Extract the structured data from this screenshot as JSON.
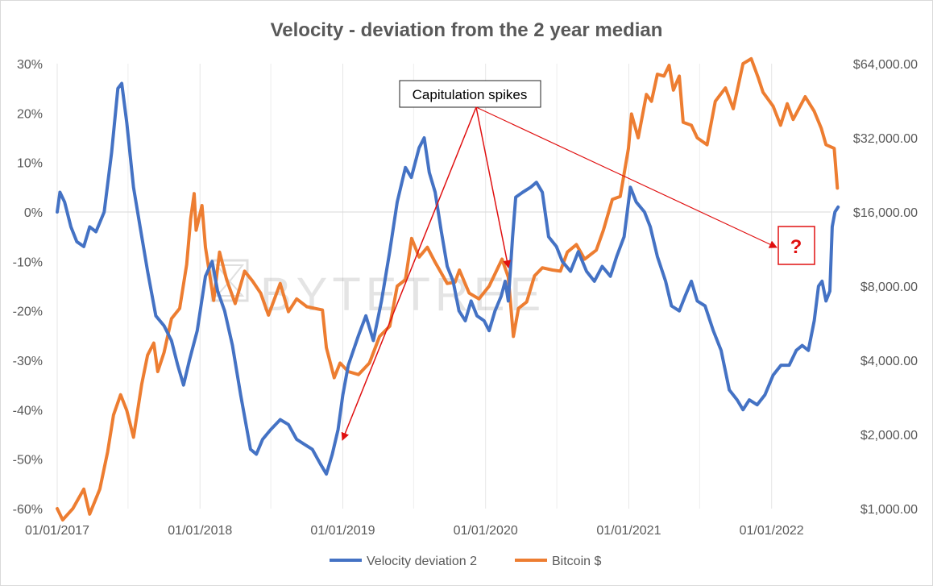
{
  "chart_data": {
    "type": "line",
    "title": "Velocity - deviation from the 2 year median",
    "x_axis": {
      "type": "date",
      "range": [
        "2017-01-01",
        "2022-06-01"
      ],
      "tick_labels": [
        "01/01/2017",
        "01/01/2018",
        "01/01/2019",
        "01/01/2020",
        "01/01/2021",
        "01/01/2022"
      ]
    },
    "y_left": {
      "range": [
        -60,
        30
      ],
      "unit": "%",
      "tick_labels": [
        "30%",
        "20%",
        "10%",
        "0%",
        "-10%",
        "-20%",
        "-30%",
        "-40%",
        "-50%",
        "-60%"
      ]
    },
    "y_right": {
      "scale": "log2",
      "range": [
        1000,
        64000
      ],
      "tick_labels": [
        "$64,000.00",
        "$32,000.00",
        "$16,000.00",
        "$8,000.00",
        "$4,000.00",
        "$2,000.00",
        "$1,000.00"
      ]
    },
    "grid": "vertical",
    "legend_position": "bottom",
    "series": [
      {
        "name": "Velocity deviation 2",
        "axis": "left",
        "color": "#4472c4",
        "points": [
          [
            "2017-01-01",
            0
          ],
          [
            "2017-01-08",
            4
          ],
          [
            "2017-01-20",
            2
          ],
          [
            "2017-02-05",
            -3
          ],
          [
            "2017-02-20",
            -6
          ],
          [
            "2017-03-10",
            -7
          ],
          [
            "2017-03-25",
            -3
          ],
          [
            "2017-04-10",
            -4
          ],
          [
            "2017-05-01",
            0
          ],
          [
            "2017-05-20",
            12
          ],
          [
            "2017-06-05",
            25
          ],
          [
            "2017-06-15",
            26
          ],
          [
            "2017-06-28",
            18
          ],
          [
            "2017-07-15",
            5
          ],
          [
            "2017-08-01",
            -3
          ],
          [
            "2017-08-20",
            -12
          ],
          [
            "2017-09-10",
            -21
          ],
          [
            "2017-10-01",
            -23
          ],
          [
            "2017-10-20",
            -26
          ],
          [
            "2017-11-05",
            -31
          ],
          [
            "2017-11-20",
            -35
          ],
          [
            "2017-12-05",
            -30
          ],
          [
            "2017-12-25",
            -24
          ],
          [
            "2018-01-15",
            -13
          ],
          [
            "2018-02-01",
            -10
          ],
          [
            "2018-02-15",
            -16
          ],
          [
            "2018-03-05",
            -20
          ],
          [
            "2018-03-25",
            -27
          ],
          [
            "2018-04-15",
            -37
          ],
          [
            "2018-05-10",
            -48
          ],
          [
            "2018-05-25",
            -49
          ],
          [
            "2018-06-10",
            -46
          ],
          [
            "2018-07-01",
            -44
          ],
          [
            "2018-07-25",
            -42
          ],
          [
            "2018-08-15",
            -43
          ],
          [
            "2018-09-05",
            -46
          ],
          [
            "2018-09-25",
            -47
          ],
          [
            "2018-10-15",
            -48
          ],
          [
            "2018-11-05",
            -51
          ],
          [
            "2018-11-20",
            -53
          ],
          [
            "2018-12-05",
            -49
          ],
          [
            "2018-12-20",
            -44
          ],
          [
            "2019-01-01",
            -37
          ],
          [
            "2019-01-15",
            -31
          ],
          [
            "2019-02-10",
            -25
          ],
          [
            "2019-03-01",
            -21
          ],
          [
            "2019-03-20",
            -26
          ],
          [
            "2019-04-10",
            -18
          ],
          [
            "2019-05-01",
            -8
          ],
          [
            "2019-05-20",
            2
          ],
          [
            "2019-06-10",
            9
          ],
          [
            "2019-06-25",
            7
          ],
          [
            "2019-07-15",
            13
          ],
          [
            "2019-07-28",
            15
          ],
          [
            "2019-08-10",
            8
          ],
          [
            "2019-08-25",
            4
          ],
          [
            "2019-09-10",
            -4
          ],
          [
            "2019-09-25",
            -11
          ],
          [
            "2019-10-10",
            -14
          ],
          [
            "2019-10-25",
            -20
          ],
          [
            "2019-11-10",
            -22
          ],
          [
            "2019-11-25",
            -18
          ],
          [
            "2019-12-10",
            -21
          ],
          [
            "2019-12-28",
            -22
          ],
          [
            "2020-01-10",
            -24
          ],
          [
            "2020-01-25",
            -20
          ],
          [
            "2020-02-10",
            -17
          ],
          [
            "2020-02-20",
            -14
          ],
          [
            "2020-02-28",
            -18
          ],
          [
            "2020-03-10",
            -5
          ],
          [
            "2020-03-18",
            3
          ],
          [
            "2020-04-05",
            4
          ],
          [
            "2020-04-25",
            5
          ],
          [
            "2020-05-10",
            6
          ],
          [
            "2020-05-25",
            4
          ],
          [
            "2020-06-10",
            -5
          ],
          [
            "2020-06-30",
            -7
          ],
          [
            "2020-07-15",
            -10
          ],
          [
            "2020-08-05",
            -12
          ],
          [
            "2020-08-25",
            -8
          ],
          [
            "2020-09-15",
            -12
          ],
          [
            "2020-10-05",
            -14
          ],
          [
            "2020-10-25",
            -11
          ],
          [
            "2020-11-15",
            -13
          ],
          [
            "2020-12-01",
            -9
          ],
          [
            "2020-12-20",
            -5
          ],
          [
            "2021-01-05",
            5
          ],
          [
            "2021-01-20",
            2
          ],
          [
            "2021-02-10",
            0
          ],
          [
            "2021-02-25",
            -3
          ],
          [
            "2021-03-15",
            -9
          ],
          [
            "2021-04-05",
            -14
          ],
          [
            "2021-04-20",
            -19
          ],
          [
            "2021-05-10",
            -20
          ],
          [
            "2021-05-25",
            -17
          ],
          [
            "2021-06-10",
            -14
          ],
          [
            "2021-06-25",
            -18
          ],
          [
            "2021-07-15",
            -19
          ],
          [
            "2021-08-05",
            -24
          ],
          [
            "2021-08-25",
            -28
          ],
          [
            "2021-09-15",
            -36
          ],
          [
            "2021-10-05",
            -38
          ],
          [
            "2021-10-20",
            -40
          ],
          [
            "2021-11-05",
            -38
          ],
          [
            "2021-11-25",
            -39
          ],
          [
            "2021-12-15",
            -37
          ],
          [
            "2022-01-05",
            -33
          ],
          [
            "2022-01-25",
            -31
          ],
          [
            "2022-02-15",
            -31
          ],
          [
            "2022-03-05",
            -28
          ],
          [
            "2022-03-20",
            -27
          ],
          [
            "2022-04-05",
            -28
          ],
          [
            "2022-04-20",
            -22
          ],
          [
            "2022-05-01",
            -15
          ],
          [
            "2022-05-10",
            -14
          ],
          [
            "2022-05-20",
            -18
          ],
          [
            "2022-05-30",
            -16
          ],
          [
            "2022-06-05",
            -3
          ],
          [
            "2022-06-12",
            0
          ],
          [
            "2022-06-20",
            1
          ]
        ]
      },
      {
        "name": "Bitcoin $",
        "axis": "right",
        "color": "#ed7d31",
        "points": [
          [
            "2017-01-01",
            1000
          ],
          [
            "2017-01-15",
            900
          ],
          [
            "2017-02-10",
            1000
          ],
          [
            "2017-03-10",
            1200
          ],
          [
            "2017-03-25",
            950
          ],
          [
            "2017-04-20",
            1200
          ],
          [
            "2017-05-10",
            1700
          ],
          [
            "2017-05-25",
            2400
          ],
          [
            "2017-06-12",
            2900
          ],
          [
            "2017-06-28",
            2500
          ],
          [
            "2017-07-15",
            1950
          ],
          [
            "2017-08-05",
            3200
          ],
          [
            "2017-08-20",
            4200
          ],
          [
            "2017-09-05",
            4700
          ],
          [
            "2017-09-15",
            3600
          ],
          [
            "2017-10-01",
            4300
          ],
          [
            "2017-10-20",
            5900
          ],
          [
            "2017-11-10",
            6500
          ],
          [
            "2017-11-28",
            9800
          ],
          [
            "2017-12-08",
            15000
          ],
          [
            "2017-12-17",
            19000
          ],
          [
            "2017-12-22",
            13500
          ],
          [
            "2018-01-06",
            17000
          ],
          [
            "2018-01-15",
            11500
          ],
          [
            "2018-02-05",
            7000
          ],
          [
            "2018-02-20",
            11000
          ],
          [
            "2018-03-10",
            8500
          ],
          [
            "2018-04-01",
            6800
          ],
          [
            "2018-04-25",
            9200
          ],
          [
            "2018-05-15",
            8400
          ],
          [
            "2018-06-05",
            7500
          ],
          [
            "2018-06-25",
            6100
          ],
          [
            "2018-07-25",
            8200
          ],
          [
            "2018-08-15",
            6300
          ],
          [
            "2018-09-05",
            7100
          ],
          [
            "2018-10-01",
            6600
          ],
          [
            "2018-11-10",
            6400
          ],
          [
            "2018-11-20",
            4500
          ],
          [
            "2018-12-10",
            3400
          ],
          [
            "2018-12-25",
            3900
          ],
          [
            "2019-01-15",
            3600
          ],
          [
            "2019-02-10",
            3500
          ],
          [
            "2019-03-10",
            3900
          ],
          [
            "2019-04-05",
            5000
          ],
          [
            "2019-05-01",
            5500
          ],
          [
            "2019-05-20",
            8000
          ],
          [
            "2019-06-10",
            8500
          ],
          [
            "2019-06-26",
            12500
          ],
          [
            "2019-07-15",
            10500
          ],
          [
            "2019-08-05",
            11500
          ],
          [
            "2019-08-25",
            10000
          ],
          [
            "2019-09-25",
            8200
          ],
          [
            "2019-10-15",
            8300
          ],
          [
            "2019-10-26",
            9300
          ],
          [
            "2019-11-20",
            7500
          ],
          [
            "2019-12-15",
            7100
          ],
          [
            "2020-01-10",
            8000
          ],
          [
            "2020-02-12",
            10300
          ],
          [
            "2020-02-28",
            8700
          ],
          [
            "2020-03-12",
            5000
          ],
          [
            "2020-03-25",
            6500
          ],
          [
            "2020-04-15",
            6900
          ],
          [
            "2020-05-05",
            8800
          ],
          [
            "2020-05-25",
            9500
          ],
          [
            "2020-06-20",
            9300
          ],
          [
            "2020-07-10",
            9200
          ],
          [
            "2020-07-28",
            11000
          ],
          [
            "2020-08-20",
            11800
          ],
          [
            "2020-09-10",
            10300
          ],
          [
            "2020-10-10",
            11200
          ],
          [
            "2020-10-28",
            13500
          ],
          [
            "2020-11-20",
            18000
          ],
          [
            "2020-12-10",
            18500
          ],
          [
            "2020-12-31",
            29000
          ],
          [
            "2021-01-08",
            40000
          ],
          [
            "2021-01-25",
            32000
          ],
          [
            "2021-02-15",
            48000
          ],
          [
            "2021-02-28",
            45000
          ],
          [
            "2021-03-15",
            58000
          ],
          [
            "2021-04-01",
            57000
          ],
          [
            "2021-04-14",
            63000
          ],
          [
            "2021-04-25",
            50000
          ],
          [
            "2021-05-10",
            57000
          ],
          [
            "2021-05-20",
            37000
          ],
          [
            "2021-06-10",
            36000
          ],
          [
            "2021-06-25",
            32000
          ],
          [
            "2021-07-20",
            30000
          ],
          [
            "2021-08-10",
            45000
          ],
          [
            "2021-09-05",
            51000
          ],
          [
            "2021-09-25",
            42000
          ],
          [
            "2021-10-20",
            64000
          ],
          [
            "2021-11-10",
            67000
          ],
          [
            "2021-11-28",
            56000
          ],
          [
            "2021-12-10",
            49000
          ],
          [
            "2022-01-05",
            43000
          ],
          [
            "2022-01-24",
            36000
          ],
          [
            "2022-02-10",
            44000
          ],
          [
            "2022-02-25",
            38000
          ],
          [
            "2022-03-28",
            47000
          ],
          [
            "2022-04-20",
            41000
          ],
          [
            "2022-05-08",
            35000
          ],
          [
            "2022-05-20",
            30000
          ],
          [
            "2022-06-10",
            29000
          ],
          [
            "2022-06-18",
            20000
          ]
        ]
      }
    ],
    "annotations": {
      "callout_text": "Capitulation spikes",
      "question_mark": "?",
      "arrow_color": "#e01010"
    }
  },
  "watermark": "BYTETREE"
}
